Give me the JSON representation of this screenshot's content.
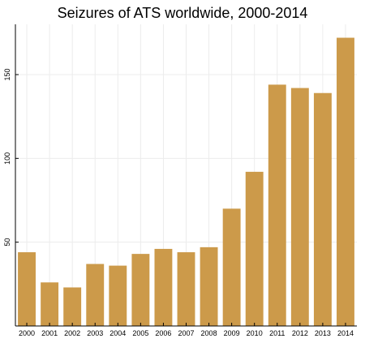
{
  "chart_data": {
    "type": "bar",
    "title": "Seizures of ATS worldwide, 2000-2014",
    "xlabel": "",
    "ylabel": "",
    "categories": [
      "2000",
      "2001",
      "2002",
      "2003",
      "2004",
      "2005",
      "2006",
      "2007",
      "2008",
      "2009",
      "2010",
      "2011",
      "2012",
      "2013",
      "2014"
    ],
    "values": [
      44,
      26,
      23,
      37,
      36,
      43,
      46,
      44,
      47,
      70,
      92,
      144,
      142,
      139,
      172
    ],
    "ylim": [
      0,
      180
    ],
    "yticks": [
      50,
      100,
      150
    ],
    "grid": true,
    "bar_color": "#cc9a4a",
    "grid_color": "#ececec",
    "axis_color": "#000000"
  }
}
